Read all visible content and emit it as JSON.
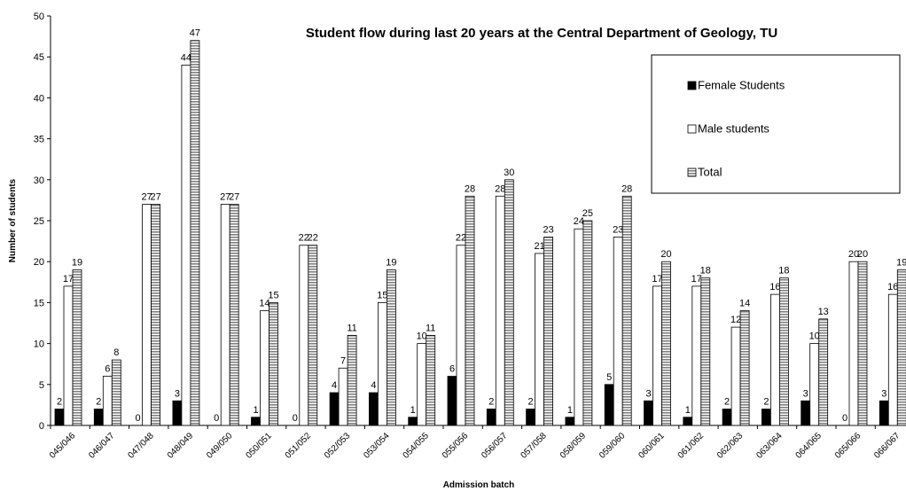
{
  "chart_data": {
    "type": "bar",
    "title": "Student flow during last 20 years at the Central Department of Geology, TU",
    "x_label": "Admission batch",
    "y_label": "Number of students",
    "categories": [
      "045/046",
      "046/047",
      "047/048",
      "048/049",
      "049/050",
      "050/051",
      "051/052",
      "052/053",
      "053/054",
      "054/055",
      "055/056",
      "056/057",
      "057/058",
      "058/059",
      "059/060",
      "060/061",
      "061/062",
      "062/063",
      "063/064",
      "064/065",
      "065/066",
      "066/067"
    ],
    "series": [
      {
        "name": "Female Students",
        "color": "#000000",
        "values": [
          2,
          2,
          0,
          3,
          0,
          1,
          0,
          4,
          4,
          1,
          6,
          2,
          2,
          1,
          5,
          3,
          1,
          2,
          2,
          3,
          0,
          3
        ]
      },
      {
        "name": "Male students",
        "color": "#ffffff",
        "values": [
          17,
          6,
          27,
          44,
          27,
          14,
          22,
          7,
          15,
          10,
          22,
          28,
          21,
          24,
          23,
          17,
          17,
          12,
          16,
          10,
          20,
          16
        ]
      },
      {
        "name": "Total",
        "color": "#808080",
        "hatch": true,
        "values": [
          19,
          8,
          27,
          47,
          27,
          15,
          22,
          11,
          19,
          11,
          28,
          30,
          23,
          25,
          28,
          20,
          18,
          14,
          18,
          13,
          20,
          19
        ]
      }
    ],
    "ylim": [
      0,
      50
    ],
    "yticks": [
      0,
      5,
      10,
      15,
      20,
      25,
      30,
      35,
      40,
      45,
      50
    ],
    "grid": false,
    "legend": "upper right"
  }
}
